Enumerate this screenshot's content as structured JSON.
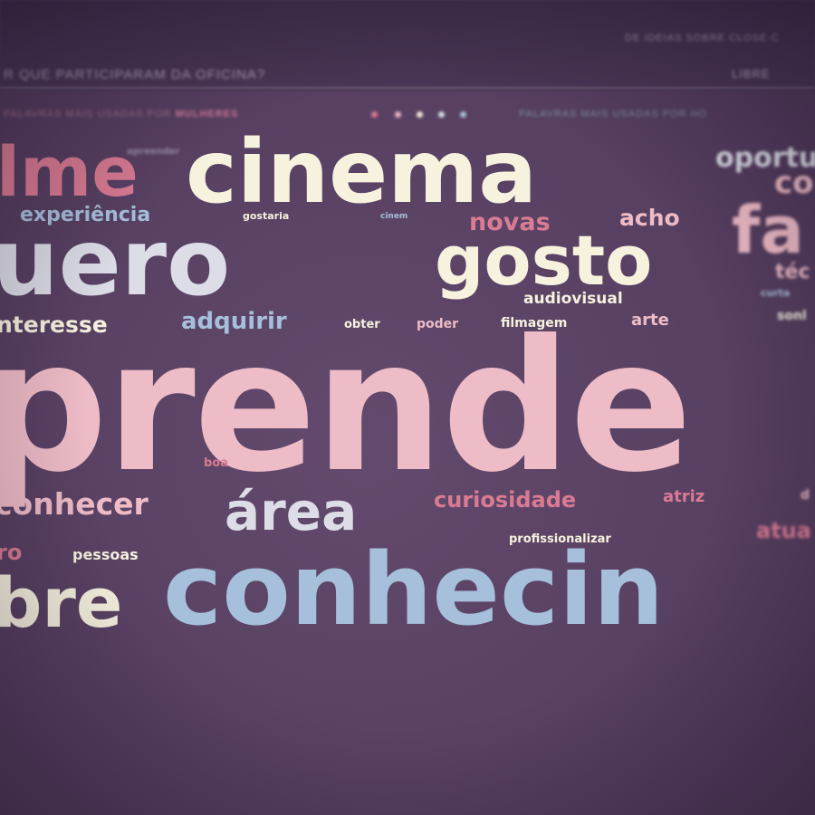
{
  "header": {
    "question": "R QUE PARTICIPARAM DA OFICINA?",
    "top_right": "DE IDEIAS SOBRE CLOSE-C",
    "top_right_2": "LIBRE",
    "left_legend_prefix": "PALAVRAS MAIS USADAS POR ",
    "left_legend_group": "MULHERES",
    "right_legend": "PALAVRAS MAIS USADAS POR HO"
  },
  "legend_dots": [
    "#d97890",
    "#e8b4c4",
    "#f2ecd8",
    "#d8dde6",
    "#a8c4dc"
  ],
  "colors": {
    "pink": "#d97b93",
    "light_pink": "#eebcc6",
    "cream": "#f6f2de",
    "light_gray": "#dcdde6",
    "light_blue": "#a6c0db"
  },
  "words": {
    "filme": "lme",
    "cinema": "cinema",
    "oportunidade": "oportu",
    "co": "co",
    "aprender": "prende",
    "quero": "uero",
    "gosto": "gosto",
    "fazer": "fa",
    "experiencia": "experiência",
    "gostaria": "gostaria",
    "cinema_small": "cinem",
    "novas": "novas",
    "acho": "acho",
    "audiovisual": "audiovisual",
    "tecnica": "téc",
    "curta": "curta",
    "sonho": "sonl",
    "interesse": "nteresse",
    "adquirir": "adquirir",
    "obter": "obter",
    "poder": "poder",
    "filmagem": "filmagem",
    "arte": "arte",
    "boa": "boa",
    "conhecer": "conhecer",
    "area": "área",
    "curiosidade": "curiosidade",
    "atriz": "atriz",
    "d": "d",
    "ro": "ro",
    "pessoas": "pessoas",
    "profissionalizar": "profissionalizar",
    "atuar": "atua",
    "sobre": "bre",
    "conhecimento": "conhecin",
    "apreender": "apreender"
  }
}
